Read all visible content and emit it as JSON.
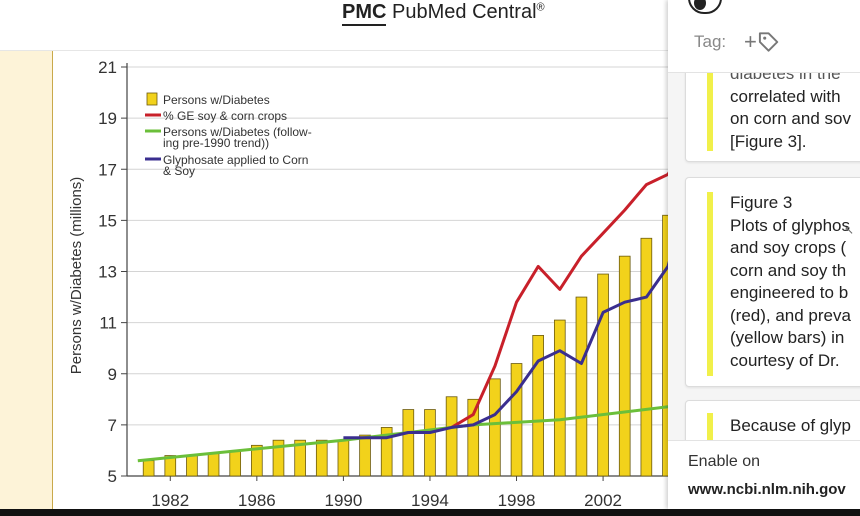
{
  "header": {
    "logo_abbrev": "PMC",
    "logo_name": "PubMed Central",
    "logo_mark": "®"
  },
  "side_panel": {
    "tag_label": "Tag:",
    "tag_add_symbol": "+",
    "cards": [
      {
        "lines": [
          "diabetes in the",
          "correlated with",
          "on corn and sov",
          "[Figure 3]."
        ]
      },
      {
        "lines": [
          "Figure 3",
          "Plots of glyphos",
          "and soy crops (",
          "corn and soy th",
          "engineered to b",
          "(red), and preva",
          "(yellow bars) in",
          "courtesy of Dr."
        ]
      },
      {
        "lines": [
          "Because of glyp"
        ]
      }
    ],
    "enable_on": "Enable on",
    "enable_url": "www.ncbi.nlm.nih.gov"
  },
  "chart_data": {
    "type": "bar",
    "ylabel": "Persons w/Diabetes (millions)",
    "xlabel": "",
    "ylim": [
      5,
      21
    ],
    "xlim": [
      1980,
      2005
    ],
    "y_ticks": [
      5,
      7,
      9,
      11,
      13,
      15,
      17,
      19,
      21
    ],
    "x_ticks": [
      "1982",
      "1986",
      "1990",
      "1994",
      "1998",
      "2002",
      "200"
    ],
    "legend": {
      "placement": "top-left",
      "entries": [
        "Persons w/Diabetes",
        "% GE soy & corn crops",
        "Persons w/Diabetes (follow-ing pre-1990 trend))",
        "Glyphosate applied to Corn & Soy"
      ]
    },
    "legend_colors": [
      "#f2d21b",
      "#c8202a",
      "#6bbf3a",
      "#3a2e8f"
    ],
    "grid": true,
    "series": [
      {
        "name": "Persons w/Diabetes",
        "type": "bar",
        "color": "#f2d21b",
        "x": [
          1981,
          1982,
          1983,
          1984,
          1985,
          1986,
          1987,
          1988,
          1989,
          1990,
          1991,
          1992,
          1993,
          1994,
          1995,
          1996,
          1997,
          1998,
          1999,
          2000,
          2001,
          2002,
          2003,
          2004,
          2005
        ],
        "values": [
          5.6,
          5.8,
          5.8,
          5.9,
          6.0,
          6.2,
          6.4,
          6.4,
          6.4,
          6.4,
          6.6,
          6.9,
          7.6,
          7.6,
          8.1,
          8.0,
          8.8,
          9.4,
          10.5,
          11.1,
          12.0,
          12.9,
          13.6,
          14.3,
          15.2
        ]
      },
      {
        "name": "% GE soy & corn crops",
        "type": "line",
        "color": "#c8202a",
        "x": [
          1995,
          1996,
          1997,
          1998,
          1999,
          2000,
          2001,
          2002,
          2003,
          2004,
          2005,
          2005.9
        ],
        "values": [
          6.9,
          7.4,
          9.3,
          11.8,
          13.2,
          12.3,
          13.6,
          14.5,
          15.4,
          16.4,
          16.8,
          18.1
        ]
      },
      {
        "name": "Persons w/Diabetes (follow-ing pre-1990 trend))",
        "type": "line",
        "color": "#6bbf3a",
        "x": [
          1980.5,
          1990,
          1996,
          2000,
          2005.9
        ],
        "values": [
          5.6,
          6.4,
          7.0,
          7.2,
          7.8
        ]
      },
      {
        "name": "Glyphosate applied to Corn & Soy",
        "type": "line",
        "color": "#3a2e8f",
        "x": [
          1990,
          1991,
          1992,
          1993,
          1994,
          1995,
          1996,
          1997,
          1998,
          1999,
          2000,
          2001,
          2002,
          2003,
          2004,
          2005,
          2005.9
        ],
        "values": [
          6.5,
          6.5,
          6.5,
          6.7,
          6.7,
          6.9,
          7.0,
          7.4,
          8.3,
          9.5,
          9.9,
          9.4,
          11.4,
          11.8,
          12.0,
          13.2,
          16.0
        ]
      }
    ]
  }
}
